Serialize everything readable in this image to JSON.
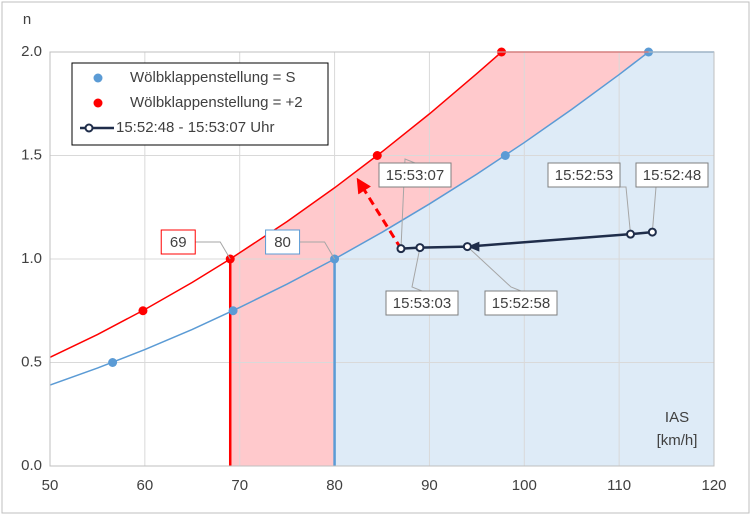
{
  "chart_data": {
    "type": "line",
    "y_axis_label": "n",
    "x_axis_label": [
      "IAS",
      "[km/h]"
    ],
    "xlim": [
      50,
      120
    ],
    "xticks": [
      50,
      60,
      70,
      80,
      90,
      100,
      110,
      120
    ],
    "ylim": [
      0,
      2
    ],
    "yticks": [
      {
        "value": 0,
        "label": "0.0"
      },
      0.5,
      {
        "value": 1,
        "label": "1.0"
      },
      1.5,
      {
        "value": 2,
        "label": "2.0"
      }
    ],
    "grid": true,
    "series": [
      {
        "name": "Wölbklappenstellung = S",
        "color": "#5b9bd5",
        "fill": "#deebf7",
        "x": [
          56.6,
          69.3,
          80,
          98,
          113.1
        ],
        "values": [
          0.5,
          0.75,
          1.0,
          1.5,
          2.0
        ],
        "curve": {
          "x": [
            50,
            55,
            60,
            65,
            70,
            75,
            80,
            85,
            90,
            95,
            100,
            105,
            110,
            113.1,
            120
          ],
          "values": [
            0.391,
            0.473,
            0.5625,
            0.66,
            0.766,
            0.879,
            1.0,
            1.129,
            1.266,
            1.41,
            1.5625,
            1.723,
            1.891,
            2.0,
            2.0
          ]
        }
      },
      {
        "name": "Wölbklappenstellung = +2",
        "color": "#ff0000",
        "fill": "#ffc9cc",
        "x": [
          59.8,
          69,
          84.5,
          97.6
        ],
        "values": [
          0.75,
          1.0,
          1.5,
          2.0
        ],
        "curve": {
          "x": [
            50,
            55,
            60,
            65,
            69,
            75,
            80,
            85,
            90,
            95,
            97.6,
            113.1
          ],
          "values": [
            0.525,
            0.635,
            0.756,
            0.887,
            1.0,
            1.181,
            1.344,
            1.518,
            1.701,
            1.896,
            2.0,
            2.0
          ]
        }
      },
      {
        "name": "15:52:48 - 15:53:07 Uhr",
        "color": "#1f2d4a",
        "x": [
          113.5,
          111.2,
          94,
          89,
          87
        ],
        "values": [
          1.13,
          1.12,
          1.06,
          1.055,
          1.05
        ],
        "point_labels": [
          "15:52:48",
          "15:52:53",
          "15:52:58",
          "15:53:03",
          "15:53:07"
        ]
      }
    ],
    "vlines": [
      {
        "x": 69,
        "y": 1.0,
        "color": "#ff0000"
      },
      {
        "x": 80,
        "y": 1.0,
        "color": "#5b9bd5"
      }
    ],
    "trend_arrow": {
      "x": [
        87,
        82.5
      ],
      "values": [
        1.05,
        1.38
      ],
      "color": "#ff0000"
    },
    "legend": "upper left"
  }
}
